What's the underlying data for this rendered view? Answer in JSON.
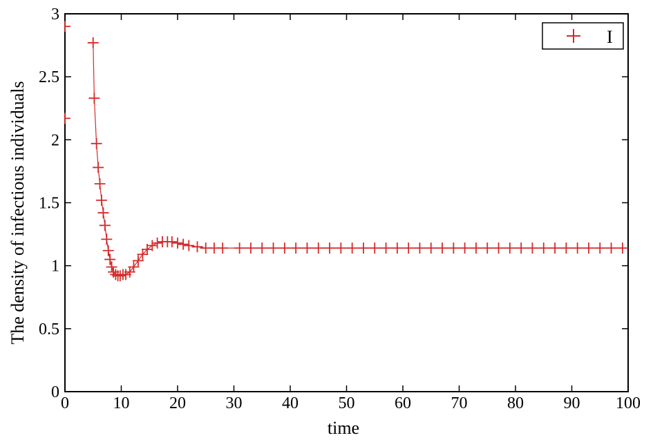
{
  "chart_data": {
    "type": "scatter",
    "title": "",
    "xlabel": "time",
    "ylabel": "The density of infectious individuals",
    "xlim": [
      0,
      100
    ],
    "ylim": [
      0,
      3
    ],
    "xticks": [
      "0",
      "10",
      "20",
      "30",
      "40",
      "50",
      "60",
      "70",
      "80",
      "90",
      "100"
    ],
    "yticks": [
      "0",
      "0.5",
      "1",
      "1.5",
      "2",
      "2.5",
      "3"
    ],
    "grid": false,
    "legend": {
      "position": "top-right",
      "entries": [
        "I"
      ]
    },
    "colors": {
      "marker": "#d42a2a",
      "line": "#d42a2a",
      "axis": "#000000"
    },
    "series": [
      {
        "name": "I",
        "marker": "plus",
        "x": [
          0,
          0,
          5,
          5.2,
          5.6,
          5.9,
          6.2,
          6.5,
          6.8,
          7.1,
          7.4,
          7.7,
          8.0,
          8.3,
          8.6,
          9.0,
          9.4,
          9.8,
          10.3,
          10.8,
          11.5,
          12.2,
          13.0,
          13.8,
          14.6,
          15.5,
          16.4,
          17.3,
          18.2,
          19.0,
          20.0,
          21.0,
          22.0,
          23.5,
          25.0,
          26.5,
          28.0,
          31.0,
          33.0,
          35.0,
          37.0,
          39.0,
          41.0,
          43.0,
          45.0,
          47.0,
          49.0,
          51.0,
          53.0,
          55.0,
          57.0,
          59.0,
          61.0,
          63.0,
          65.0,
          67.0,
          69.0,
          71.0,
          73.0,
          75.0,
          77.0,
          79.0,
          81.0,
          83.0,
          85.0,
          87.0,
          89.0,
          91.0,
          93.0,
          95.0,
          97.0,
          99.0
        ],
        "y": [
          2.9,
          2.17,
          2.77,
          2.33,
          1.97,
          1.78,
          1.65,
          1.52,
          1.42,
          1.32,
          1.21,
          1.12,
          1.05,
          0.99,
          0.95,
          0.93,
          0.92,
          0.92,
          0.93,
          0.93,
          0.95,
          0.99,
          1.04,
          1.09,
          1.13,
          1.16,
          1.18,
          1.19,
          1.19,
          1.19,
          1.18,
          1.17,
          1.16,
          1.15,
          1.14,
          1.14,
          1.14,
          1.14,
          1.14,
          1.14,
          1.14,
          1.14,
          1.14,
          1.14,
          1.14,
          1.14,
          1.14,
          1.14,
          1.14,
          1.14,
          1.14,
          1.14,
          1.14,
          1.14,
          1.14,
          1.14,
          1.14,
          1.14,
          1.14,
          1.14,
          1.14,
          1.14,
          1.14,
          1.14,
          1.14,
          1.14,
          1.14,
          1.14,
          1.14,
          1.14,
          1.14,
          1.14
        ]
      }
    ]
  }
}
